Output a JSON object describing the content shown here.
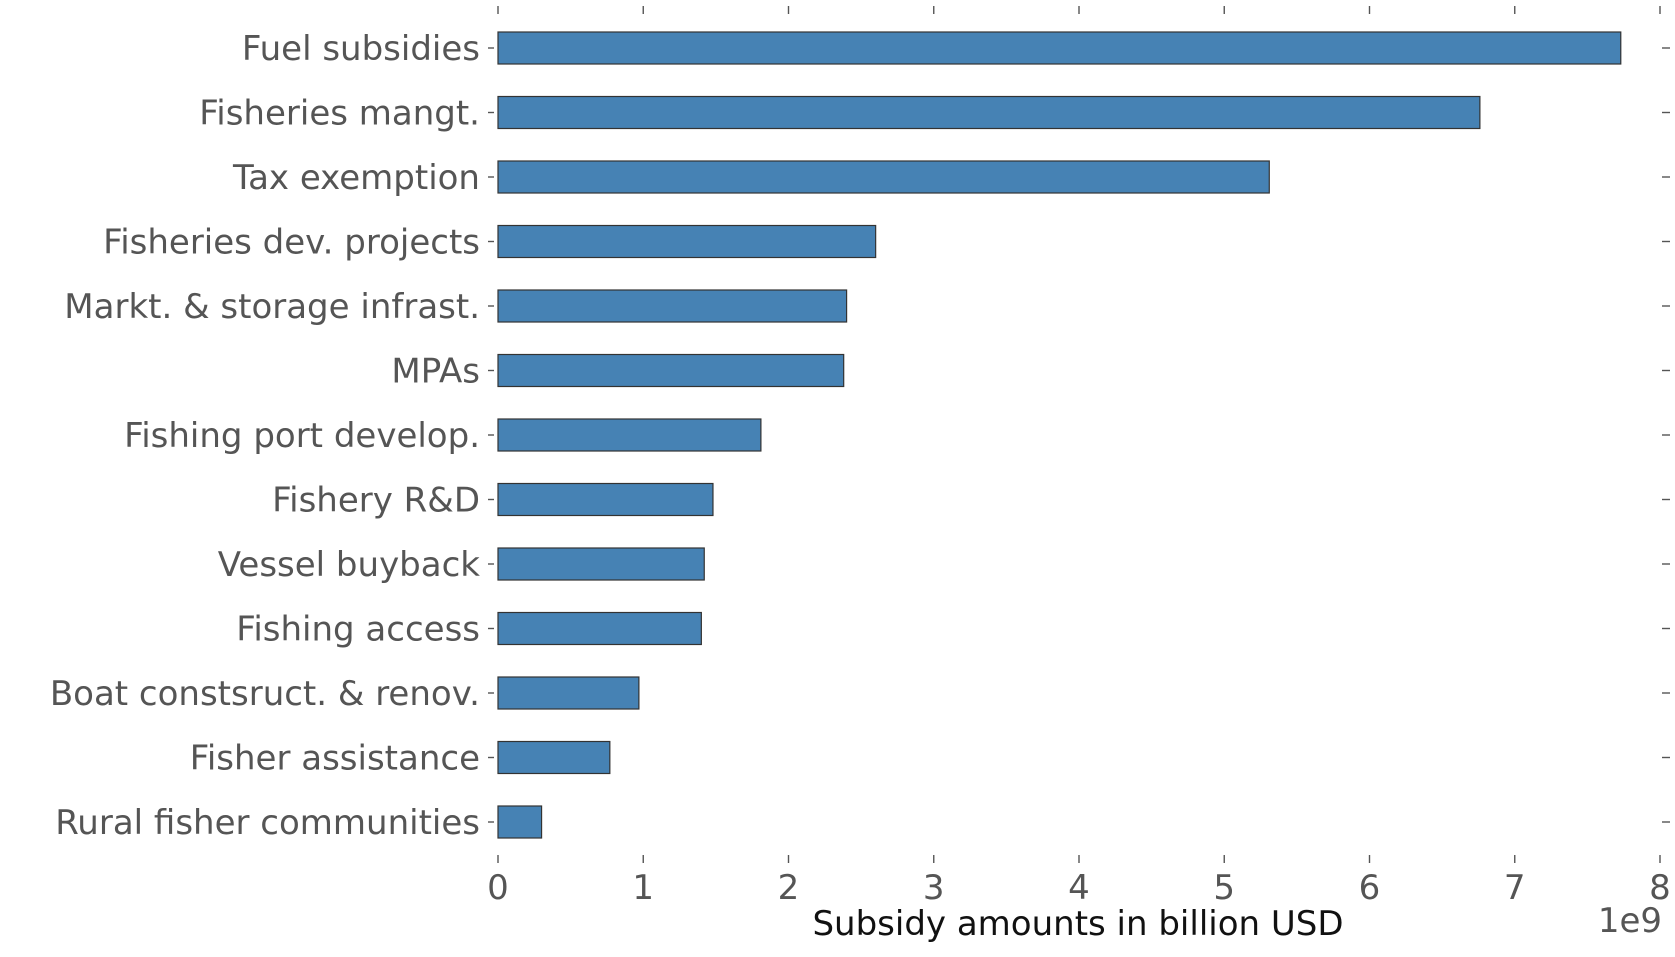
{
  "chart_data": {
    "type": "bar",
    "orientation": "horizontal",
    "categories": [
      "Fuel subsidies",
      "Fisheries mangt.",
      "Tax exemption",
      "Fisheries dev. projects",
      "Markt. & storage infrast.",
      "MPAs",
      "Fishing port develop.",
      "Fishery R&D",
      "Vessel buyback",
      "Fishing access",
      "Boat constsruct. & renov.",
      "Fisher assistance",
      "Rural fisher communities"
    ],
    "values": [
      7.73,
      6.76,
      5.31,
      2.6,
      2.4,
      2.38,
      1.81,
      1.48,
      1.42,
      1.4,
      0.97,
      0.77,
      0.3
    ],
    "xlabel": "Subsidy amounts in billion USD",
    "x_offset_label": "1e9",
    "xlim": [
      0,
      8
    ],
    "xticks": [
      0,
      1,
      2,
      3,
      4,
      5,
      6,
      7,
      8
    ],
    "grid": false,
    "bar_color": "#4682b4",
    "edge_color": "#333333",
    "text_color": "#555555"
  }
}
